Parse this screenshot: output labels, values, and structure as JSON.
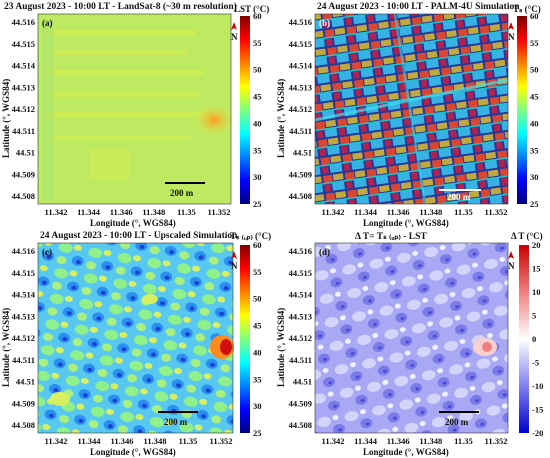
{
  "panels": {
    "a": {
      "tag": "(a)",
      "title": "23 August 2023 - 10:00 LT - LandSat-8 (~30 m resolution)",
      "cb_title": "LST (°C)",
      "cb_ticks": [
        "60",
        "55",
        "50",
        "45",
        "40",
        "35",
        "30",
        "25"
      ],
      "xticks": [
        "11.342",
        "11.344",
        "11.346",
        "11.348",
        "11.35",
        "11.352"
      ],
      "yticks": [
        "44.516",
        "44.515",
        "44.514",
        "44.513",
        "44.512",
        "44.511",
        "44.51",
        "44.509",
        "44.508"
      ],
      "xlabel": "Longitude (°, WGS84)",
      "ylabel": "Latitude (°, WGS84)",
      "scalebar": "200 m",
      "north": "N"
    },
    "b": {
      "tag": "(b)",
      "title": "24 August 2023 - 10:00 LT - PALM-4U Simulation",
      "cb_title": "Tₛ (°C)",
      "cb_ticks": [
        "60",
        "55",
        "50",
        "45",
        "40",
        "35",
        "30",
        "25"
      ],
      "xticks": [
        "11.342",
        "11.344",
        "11.346",
        "11.348",
        "11.35",
        "11.352"
      ],
      "yticks": [
        "44.516",
        "44.515",
        "44.514",
        "44.513",
        "44.512",
        "44.511",
        "44.51",
        "44.509",
        "44.508"
      ],
      "xlabel": "Longitude (°, WGS84)",
      "ylabel": "Latitude (°, WGS84)",
      "scalebar": "200 m",
      "north": "N"
    },
    "c": {
      "tag": "(c)",
      "title": "24 August 2023 - 10:00 LT - Upscaled Simulation",
      "cb_title": "Tₛ ₍ᵤₚ₎ (°C)",
      "cb_ticks": [
        "60",
        "55",
        "50",
        "45",
        "40",
        "35",
        "30",
        "25"
      ],
      "xticks": [
        "11.342",
        "11.344",
        "11.346",
        "11.348",
        "11.35",
        "11.352"
      ],
      "yticks": [
        "44.516",
        "44.515",
        "44.514",
        "44.513",
        "44.512",
        "44.511",
        "44.51",
        "44.509",
        "44.508"
      ],
      "xlabel": "Longitude (°, WGS84)",
      "ylabel": "Latitude (°, WGS84)",
      "scalebar": "200 m",
      "north": "N"
    },
    "d": {
      "tag": "(d)",
      "title": "Δ T= Tₛ ₍ᵤₚ₎ - LST",
      "cb_title": "Δ T (°C)",
      "cb_ticks": [
        "20",
        "15",
        "10",
        "5",
        "0",
        "-5",
        "-10",
        "-15",
        "-20"
      ],
      "xticks": [
        "11.342",
        "11.344",
        "11.346",
        "11.348",
        "11.35",
        "11.352"
      ],
      "yticks": [
        "44.516",
        "44.515",
        "44.514",
        "44.513",
        "44.512",
        "44.511",
        "44.51",
        "44.509",
        "44.508"
      ],
      "xlabel": "Longitude (°, WGS84)",
      "ylabel": "Latitude (°, WGS84)",
      "scalebar": "200 m",
      "north": "N"
    }
  },
  "colors": {
    "jet": [
      "#00007f",
      "#0000ff",
      "#007fff",
      "#00ffff",
      "#7fff7f",
      "#ffff00",
      "#ff7f00",
      "#ff0000",
      "#7f0000"
    ],
    "bwr": [
      "#0000c8",
      "#6a6af0",
      "#c8c8ff",
      "#ffffff",
      "#ffc8c8",
      "#f06a6a",
      "#c80000"
    ]
  }
}
